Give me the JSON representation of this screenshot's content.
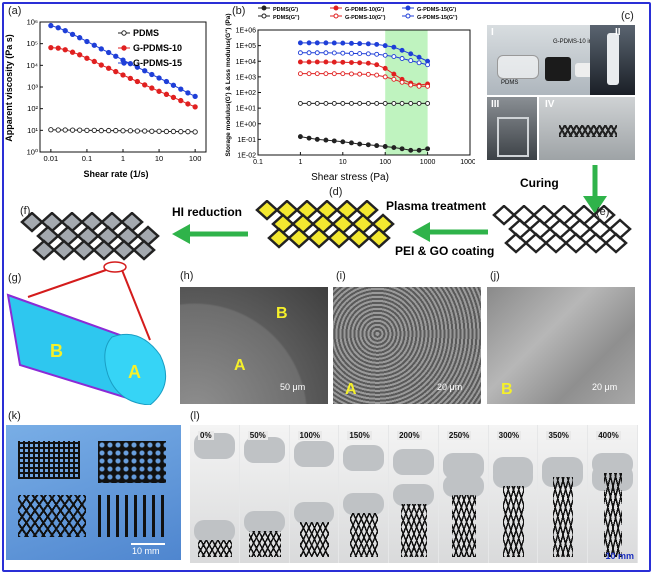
{
  "figure": {
    "panel_labels": [
      "(a)",
      "(b)",
      "(c)",
      "(d)",
      "(e)",
      "(f)",
      "(g)",
      "(h)",
      "(i)",
      "(j)",
      "(k)",
      "(l)"
    ],
    "colors": {
      "frame": "#2a2fd6",
      "pdms": "#222222",
      "g10": "#e02020",
      "g15": "#1f3fd8",
      "arrow": "#2fb34a",
      "highlight": "#f2e61a",
      "tube": "#2ec7ef",
      "green_zone": "#bff3bf"
    }
  },
  "process": {
    "curing": "Curing",
    "plasma": "Plasma treatment",
    "coating": "PEI & GO coating",
    "reduction": "HI reduction"
  },
  "panel_c": {
    "roman": [
      "I",
      "II",
      "III",
      "IV"
    ],
    "labels": [
      "G-PDMS-10 ink",
      "PDMS"
    ]
  },
  "panel_g": {
    "region_b": "B",
    "region_a": "A"
  },
  "sem": {
    "h": {
      "a": "A",
      "b": "B",
      "scale": "50 μm"
    },
    "i": {
      "a": "A",
      "scale": "20 μm"
    },
    "j": {
      "b": "B",
      "scale": "20 μm"
    }
  },
  "panel_k": {
    "scale": "10 mm"
  },
  "panel_l": {
    "strains": [
      "0%",
      "50%",
      "100%",
      "150%",
      "200%",
      "250%",
      "300%",
      "350%",
      "400%"
    ],
    "scale": "10 mm"
  },
  "chart_data": [
    {
      "type": "line",
      "xlabel": "Shear rate (1/s)",
      "ylabel": "Apparent viscosity (Pa s)",
      "xscale": "log",
      "yscale": "log",
      "xlim": [
        0.005,
        200
      ],
      "ylim": [
        0.3,
        2000000
      ],
      "xticks": [
        "0.01",
        "0.1",
        "1",
        "10",
        "100"
      ],
      "yticks": [
        "10⁰",
        "10¹",
        "10²",
        "10³",
        "10⁴",
        "10⁵",
        "10⁶"
      ],
      "legend": "top-right",
      "series": [
        {
          "name": "PDMS",
          "color": "#222222",
          "marker": "open-circle",
          "x": [
            0.01,
            0.016,
            0.025,
            0.04,
            0.063,
            0.1,
            0.16,
            0.25,
            0.4,
            0.63,
            1,
            1.6,
            2.5,
            4,
            6.3,
            10,
            16,
            25,
            40,
            63,
            100
          ],
          "y": [
            4.4,
            4.3,
            4.3,
            4.2,
            4.2,
            4.1,
            4.1,
            4.0,
            4.0,
            4.0,
            3.9,
            3.9,
            3.8,
            3.8,
            3.7,
            3.7,
            3.6,
            3.6,
            3.5,
            3.5,
            3.4
          ]
        },
        {
          "name": "G-PDMS-10",
          "color": "#e02020",
          "marker": "filled-circle",
          "x": [
            0.01,
            0.016,
            0.025,
            0.04,
            0.063,
            0.1,
            0.16,
            0.25,
            0.4,
            0.63,
            1,
            1.6,
            2.5,
            4,
            6.3,
            10,
            16,
            25,
            40,
            63,
            100
          ],
          "y": [
            90000,
            85000,
            70000,
            52000,
            38000,
            25000,
            17000,
            11000,
            7500,
            5000,
            3300,
            2200,
            1500,
            1000,
            680,
            460,
            320,
            220,
            150,
            100,
            70
          ]
        },
        {
          "name": "G-PDMS-15",
          "color": "#1f3fd8",
          "marker": "filled-circle",
          "x": [
            0.01,
            0.016,
            0.025,
            0.04,
            0.063,
            0.1,
            0.16,
            0.25,
            0.4,
            0.63,
            1,
            1.6,
            2.5,
            4,
            6.3,
            10,
            16,
            25,
            40,
            63,
            100
          ],
          "y": [
            1300000,
            1000000,
            700000,
            450000,
            300000,
            190000,
            120000,
            78000,
            50000,
            32000,
            20000,
            13000,
            8500,
            5500,
            3500,
            2300,
            1500,
            950,
            600,
            380,
            250
          ]
        }
      ]
    },
    {
      "type": "line",
      "xlabel": "Shear stress (Pa)",
      "ylabel": "Storage modulus(G') & Loss modulus(G'') (Pa)",
      "xscale": "log",
      "yscale": "log",
      "xlim": [
        0.1,
        10000
      ],
      "ylim": [
        0.01,
        1000000
      ],
      "xticks": [
        "0.1",
        "1",
        "10",
        "100",
        "1000",
        "10000"
      ],
      "yticks": [
        "1E-02",
        "1E-01",
        "1E+00",
        "1E+01",
        "1E+02",
        "1E+03",
        "1E+04",
        "1E+05",
        "1E+06"
      ],
      "shaded_region_x": [
        100,
        1000
      ],
      "legend": "top",
      "series": [
        {
          "name": "PDMS(G')",
          "color": "#222222",
          "marker": "filled-circle",
          "x": [
            1,
            1.6,
            2.5,
            4,
            6.3,
            10,
            16,
            25,
            40,
            63,
            100,
            160,
            250,
            400,
            630,
            1000
          ],
          "y": [
            0.15,
            0.12,
            0.1,
            0.09,
            0.08,
            0.07,
            0.06,
            0.05,
            0.045,
            0.04,
            0.035,
            0.03,
            0.025,
            0.02,
            0.02,
            0.025
          ]
        },
        {
          "name": "G-PDMS-10(G')",
          "color": "#e02020",
          "marker": "filled-circle",
          "x": [
            1,
            1.6,
            2.5,
            4,
            6.3,
            10,
            16,
            25,
            40,
            63,
            100,
            160,
            250,
            400,
            630,
            1000
          ],
          "y": [
            9000,
            9000,
            9000,
            9000,
            8800,
            8600,
            8300,
            8000,
            7500,
            6000,
            3500,
            1500,
            700,
            400,
            300,
            350
          ]
        },
        {
          "name": "G-PDMS-15(G')",
          "color": "#1f3fd8",
          "marker": "filled-circle",
          "x": [
            1,
            1.6,
            2.5,
            4,
            6.3,
            10,
            16,
            25,
            40,
            63,
            100,
            160,
            250,
            400,
            630,
            1000
          ],
          "y": [
            150000,
            150000,
            150000,
            150000,
            148000,
            145000,
            140000,
            135000,
            130000,
            120000,
            100000,
            80000,
            50000,
            30000,
            18000,
            10000
          ]
        },
        {
          "name": "PDMS(G'')",
          "color": "#222222",
          "marker": "open-circle",
          "x": [
            1,
            1.6,
            2.5,
            4,
            6.3,
            10,
            16,
            25,
            40,
            63,
            100,
            160,
            250,
            400,
            630,
            1000
          ],
          "y": [
            20,
            20,
            20,
            20,
            20,
            20,
            20,
            20,
            20,
            20,
            20,
            20,
            20,
            20,
            20,
            20
          ]
        },
        {
          "name": "G-PDMS-10(G'')",
          "color": "#e02020",
          "marker": "open-circle",
          "x": [
            1,
            1.6,
            2.5,
            4,
            6.3,
            10,
            16,
            25,
            40,
            63,
            100,
            160,
            250,
            400,
            630,
            1000
          ],
          "y": [
            1600,
            1600,
            1600,
            1600,
            1600,
            1600,
            1550,
            1500,
            1450,
            1300,
            1000,
            700,
            450,
            300,
            250,
            250
          ]
        },
        {
          "name": "G-PDMS-15(G'')",
          "color": "#1f3fd8",
          "marker": "open-circle",
          "x": [
            1,
            1.6,
            2.5,
            4,
            6.3,
            10,
            16,
            25,
            40,
            63,
            100,
            160,
            250,
            400,
            630,
            1000
          ],
          "y": [
            35000,
            35000,
            35000,
            35000,
            34000,
            33000,
            32000,
            31000,
            30000,
            28000,
            24000,
            20000,
            15000,
            11000,
            8000,
            6000
          ]
        }
      ]
    }
  ]
}
